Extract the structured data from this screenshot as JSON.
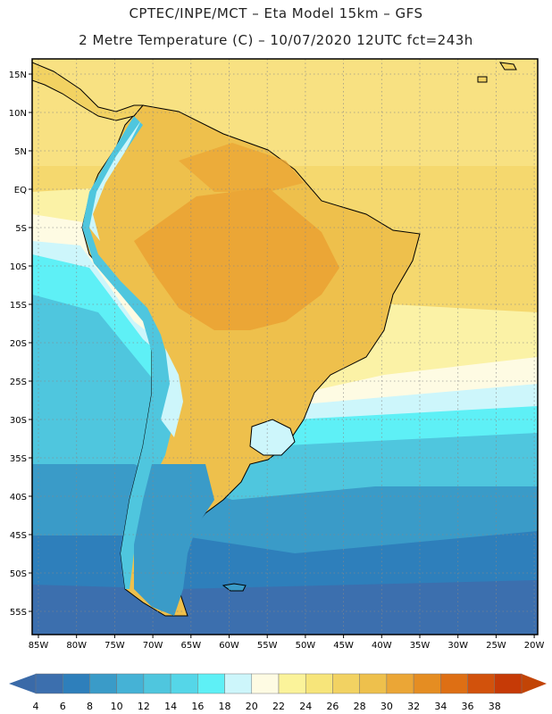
{
  "header": {
    "line1": "CPTEC/INPE/MCT –  Eta Model 15km – GFS",
    "line2": "2 Metre Temperature (C) – 10/07/2020 12UTC fct=243h"
  },
  "map": {
    "lat_labels": [
      "15N",
      "10N",
      "5N",
      "EQ",
      "5S",
      "10S",
      "15S",
      "20S",
      "25S",
      "30S",
      "35S",
      "40S",
      "45S",
      "50S",
      "55S"
    ],
    "lon_labels": [
      "85W",
      "80W",
      "75W",
      "70W",
      "65W",
      "60W",
      "55W",
      "50W",
      "45W",
      "40W",
      "35W",
      "30W",
      "25W",
      "20W"
    ]
  },
  "colorbar": {
    "labels": [
      "4",
      "6",
      "8",
      "10",
      "12",
      "14",
      "16",
      "18",
      "20",
      "22",
      "24",
      "26",
      "28",
      "30",
      "32",
      "34",
      "36",
      "38"
    ],
    "colors": [
      "#3c6fae",
      "#2e7fbb",
      "#3a9bc8",
      "#45b2d6",
      "#4fc6de",
      "#55d6e8",
      "#5ef0f6",
      "#cdf6fb",
      "#fefbe3",
      "#fbf39a",
      "#f7e57a",
      "#f2d262",
      "#eec04c",
      "#eba636",
      "#e58d22",
      "#de6f14",
      "#d2520c",
      "#c63a06"
    ],
    "low_color": "#3a6aa8",
    "high_color": "#c24406"
  }
}
